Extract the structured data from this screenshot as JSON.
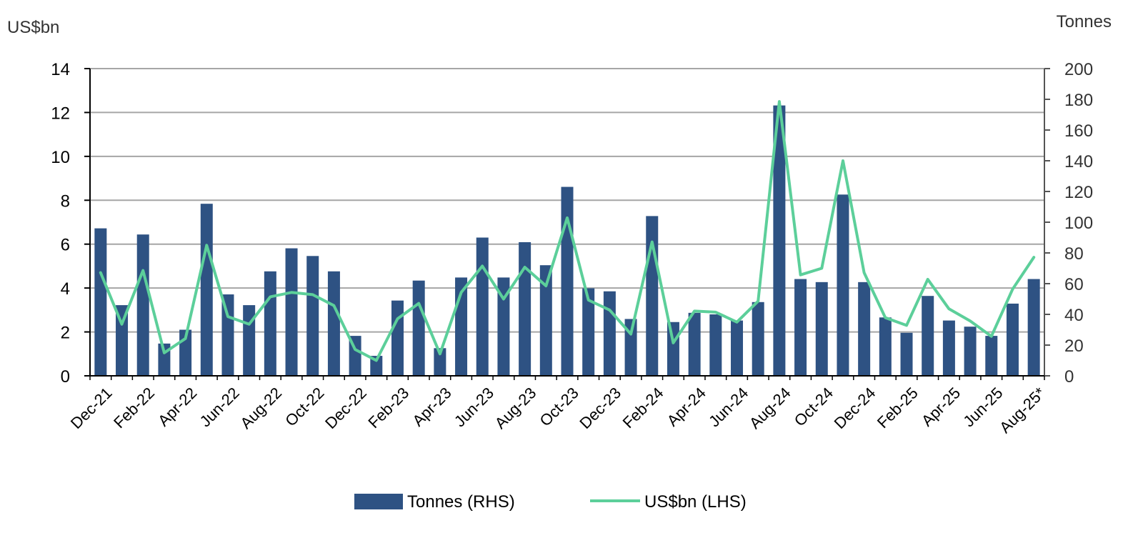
{
  "chart_data": {
    "type": "bar",
    "title": "",
    "left_axis_label": "US$bn",
    "right_axis_label": "Tonnes",
    "left_ylim": [
      0,
      14
    ],
    "left_ticks": [
      0,
      2,
      4,
      6,
      8,
      10,
      12,
      14
    ],
    "right_ylim": [
      0,
      200
    ],
    "right_ticks": [
      0,
      20,
      40,
      60,
      80,
      100,
      120,
      140,
      160,
      180,
      200
    ],
    "grid": true,
    "legend_position": "bottom",
    "categories": [
      "Dec-21",
      "Jan-22",
      "Feb-22",
      "Mar-22",
      "Apr-22",
      "May-22",
      "Jun-22",
      "Jul-22",
      "Aug-22",
      "Sep-22",
      "Oct-22",
      "Nov-22",
      "Dec-22",
      "Jan-23",
      "Feb-23",
      "Mar-23",
      "Apr-23",
      "May-23",
      "Jun-23",
      "Jul-23",
      "Aug-23",
      "Sep-23",
      "Oct-23",
      "Nov-23",
      "Dec-23",
      "Jan-24",
      "Feb-24",
      "Mar-24",
      "Apr-24",
      "May-24",
      "Jun-24",
      "Jul-24",
      "Aug-24",
      "Sep-24",
      "Oct-24",
      "Nov-24",
      "Dec-24",
      "Jan-25",
      "Feb-25",
      "Mar-25",
      "Apr-25",
      "May-25",
      "Jun-25",
      "Jul-25",
      "Aug-25*"
    ],
    "x_tick_labels": [
      "Dec-21",
      "Feb-22",
      "Apr-22",
      "Jun-22",
      "Aug-22",
      "Oct-22",
      "Dec-22",
      "Feb-23",
      "Apr-23",
      "Jun-23",
      "Aug-23",
      "Oct-23",
      "Dec-23",
      "Feb-24",
      "Apr-24",
      "Jun-24",
      "Aug-24",
      "Oct-24",
      "Dec-24",
      "Feb-25",
      "Apr-25",
      "Jun-25",
      "Aug-25*"
    ],
    "series": [
      {
        "name": "Tonnes (RHS)",
        "kind": "bar",
        "axis": "right",
        "color": "#2e5283",
        "values": [
          96,
          46,
          92,
          21,
          30,
          112,
          53,
          46,
          68,
          83,
          78,
          68,
          26,
          13,
          49,
          62,
          18,
          64,
          90,
          64,
          87,
          72,
          123,
          57,
          55,
          37,
          104,
          35,
          41,
          40,
          36,
          48,
          176,
          63,
          61,
          118,
          61,
          38,
          28,
          52,
          36,
          32,
          26,
          47,
          63
        ]
      },
      {
        "name": "US$bn (LHS)",
        "kind": "line",
        "axis": "left",
        "color": "#5ccf9a",
        "values": [
          4.7,
          2.35,
          4.8,
          1.05,
          1.7,
          5.95,
          2.7,
          2.35,
          3.6,
          3.8,
          3.7,
          3.2,
          1.2,
          0.7,
          2.6,
          3.3,
          1.0,
          3.8,
          5.0,
          3.5,
          4.95,
          4.1,
          7.2,
          3.45,
          3.0,
          1.9,
          6.1,
          1.5,
          2.95,
          2.9,
          2.45,
          3.4,
          12.5,
          4.6,
          4.9,
          9.8,
          4.7,
          2.65,
          2.3,
          4.4,
          3.05,
          2.5,
          1.8,
          3.95,
          5.4
        ]
      }
    ]
  }
}
